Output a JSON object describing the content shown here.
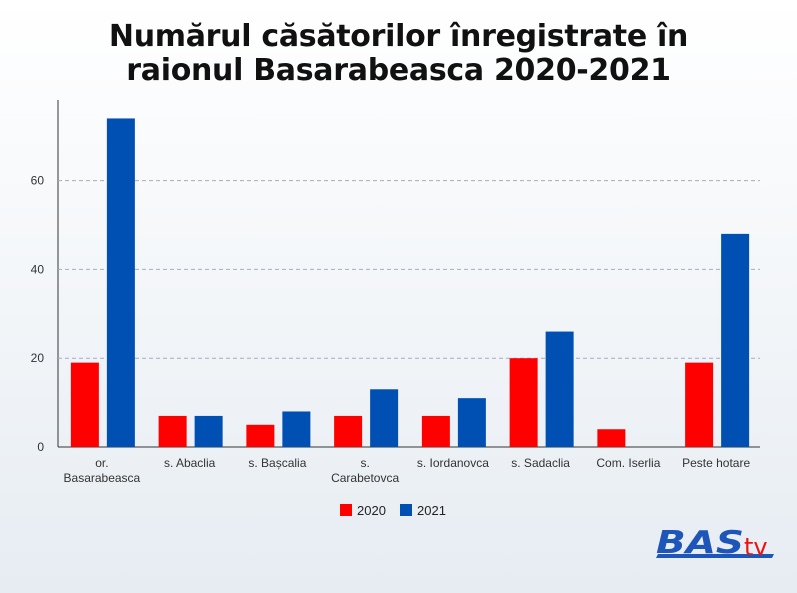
{
  "chart_data": {
    "type": "bar",
    "title": "Numărul căsătorilor înregistrate în raionul Basarabeasca 2020-2021",
    "categories": [
      [
        "or.",
        "Basarabeasca"
      ],
      [
        "s. Abaclia"
      ],
      [
        "s. Bașcalia"
      ],
      [
        "s.",
        "Carabetovca"
      ],
      [
        "s. Iordanovca"
      ],
      [
        "s. Sadaclia"
      ],
      [
        "Com. Iserlia"
      ],
      [
        "Peste hotare"
      ]
    ],
    "series": [
      {
        "name": "2020",
        "color": "#ff0000",
        "values": [
          19,
          7,
          5,
          7,
          7,
          20,
          4,
          19
        ]
      },
      {
        "name": "2021",
        "color": "#0050b4",
        "values": [
          74,
          7,
          8,
          13,
          11,
          26,
          0,
          48
        ]
      }
    ],
    "yticks": [
      0,
      20,
      40,
      60
    ],
    "ylim": [
      0,
      74
    ],
    "grid": true,
    "legend": "bottom"
  },
  "logo": {
    "text": "BAStv"
  }
}
